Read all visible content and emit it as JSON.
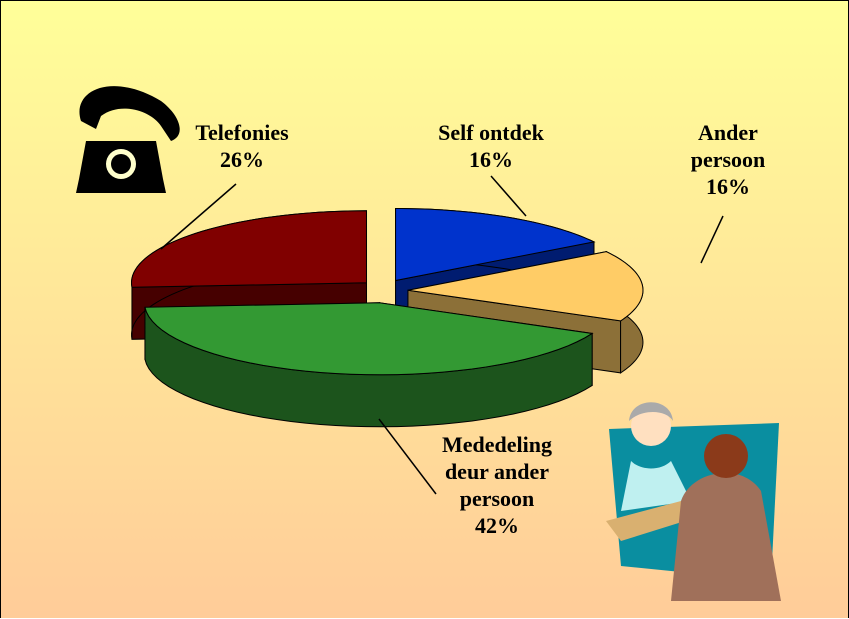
{
  "chart_data": {
    "type": "pie",
    "categories": [
      "Self ontdek",
      "Ander persoon",
      "Mededeling deur ander persoon",
      "Telefonies"
    ],
    "values": [
      16,
      16,
      42,
      26
    ],
    "value_labels": [
      "16%",
      "16%",
      "42%",
      "26%"
    ],
    "colors": [
      "#0033cc",
      "#ffcc66",
      "#339933",
      "#800000"
    ]
  }
}
